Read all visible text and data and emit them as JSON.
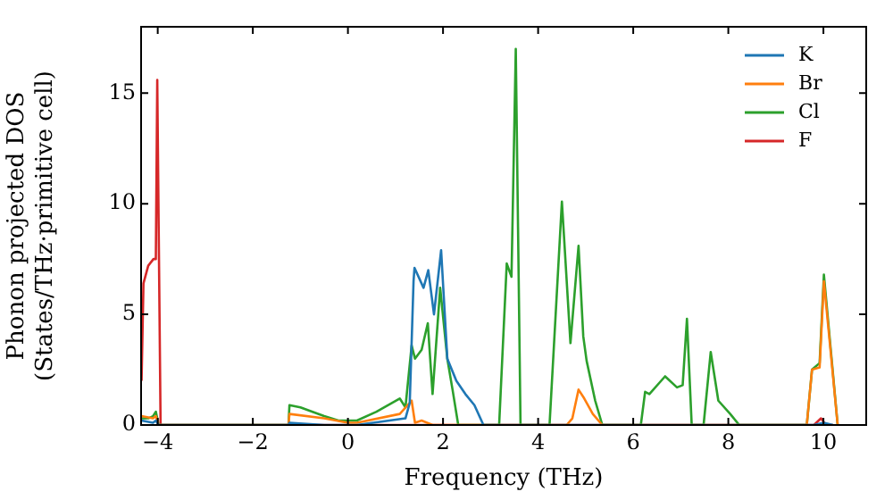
{
  "chart_data": {
    "type": "line",
    "xlabel": "Frequency (THz)",
    "ylabel": "Phonon projected DOS\n(States/THz·primitive cell)",
    "xlim": [
      -4.35,
      10.9
    ],
    "ylim": [
      0,
      18
    ],
    "xticks": [
      {
        "value": -4,
        "label": "−4"
      },
      {
        "value": -2,
        "label": "−2"
      },
      0,
      2,
      4,
      6,
      8,
      10
    ],
    "yticks": [
      0,
      5,
      10,
      15
    ],
    "grid": false,
    "legend": "top right",
    "series": [
      {
        "name": "K",
        "color": "#1f77b4",
        "x": [
          -4.34,
          -4.1,
          -4.04,
          -3.98,
          -1.25,
          -1.23,
          -0.5,
          0.19,
          1.21,
          1.3,
          1.38,
          1.4,
          1.59,
          1.69,
          1.81,
          1.96,
          2.09,
          2.28,
          2.47,
          2.66,
          2.85,
          9.8,
          10.01,
          10.2
        ],
        "values": [
          0.2,
          0.1,
          0.2,
          0,
          0,
          0.1,
          0,
          0,
          0.3,
          1,
          6.5,
          7.1,
          6.2,
          7,
          5,
          7.9,
          3,
          2,
          1.4,
          0.9,
          0,
          0,
          0.1,
          0
        ]
      },
      {
        "name": "Br",
        "color": "#ff7f0e",
        "x": [
          -4.34,
          -4.1,
          -4.04,
          -3.98,
          -1.25,
          -1.23,
          -0.5,
          0,
          0.19,
          1.09,
          1.34,
          1.41,
          1.55,
          1.78,
          2,
          4.6,
          4.72,
          4.85,
          4.97,
          5.15,
          5.35,
          9.65,
          9.76,
          9.92,
          10.01,
          10.3
        ],
        "values": [
          0.4,
          0.3,
          0.4,
          0,
          0,
          0.5,
          0.3,
          0.1,
          0.1,
          0.5,
          1.1,
          0.1,
          0.2,
          0,
          0,
          0,
          0.3,
          1.6,
          1.2,
          0.5,
          0,
          0,
          2.5,
          2.6,
          6.5,
          0
        ]
      },
      {
        "name": "Cl",
        "color": "#2ca02c",
        "x": [
          -4.34,
          -4.2,
          -4.1,
          -4.04,
          -3.98,
          -1.25,
          -1.23,
          -1,
          -0.5,
          -0.2,
          0.19,
          0.6,
          1.09,
          1.21,
          1.34,
          1.41,
          1.55,
          1.68,
          1.78,
          1.94,
          2.09,
          2.2,
          2.32,
          3.18,
          3.34,
          3.44,
          3.53,
          3.63,
          4.24,
          4.5,
          4.68,
          4.85,
          4.95,
          5.02,
          5.2,
          5.35,
          6.16,
          6.25,
          6.34,
          6.67,
          6.92,
          7.04,
          7.13,
          7.23,
          7.48,
          7.63,
          7.79,
          8.04,
          8.23,
          9.65,
          9.76,
          9.92,
          10.01,
          10.3
        ],
        "values": [
          0.3,
          0.3,
          0.4,
          0.6,
          0,
          0,
          0.9,
          0.8,
          0.4,
          0.2,
          0.2,
          0.6,
          1.2,
          0.8,
          3.6,
          3,
          3.4,
          4.6,
          1.4,
          6.2,
          3,
          1.6,
          0,
          0,
          7.3,
          6.7,
          17,
          0,
          0,
          10.1,
          3.7,
          8.1,
          4,
          2.9,
          1.1,
          0,
          0,
          1.5,
          1.4,
          2.2,
          1.7,
          1.8,
          4.8,
          0,
          0,
          3.3,
          1.1,
          0.5,
          0,
          0,
          2.5,
          2.8,
          6.8,
          0
        ]
      },
      {
        "name": "F",
        "color": "#d62728",
        "x": [
          -4.34,
          -4.3,
          -4.2,
          -4.09,
          -4.04,
          -4.01,
          -3.94,
          9.8,
          9.95,
          10.05,
          10.2
        ],
        "values": [
          2,
          6.4,
          7.2,
          7.5,
          7.5,
          15.6,
          0,
          0,
          0.3,
          0,
          0
        ]
      }
    ]
  }
}
